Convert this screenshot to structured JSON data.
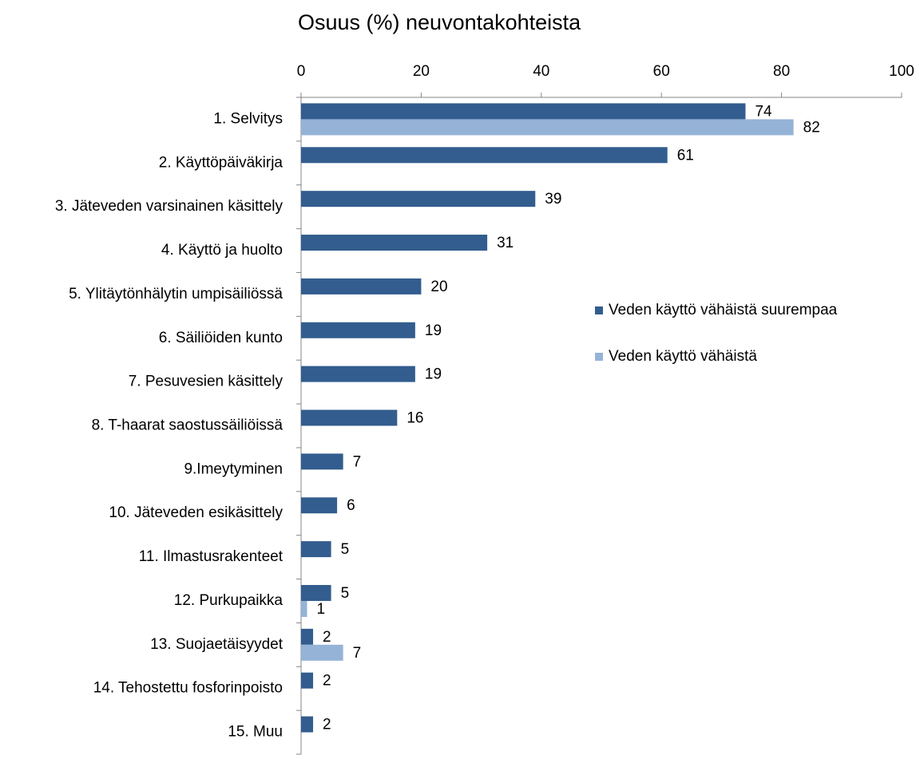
{
  "chart_data": {
    "type": "bar",
    "orientation": "horizontal",
    "title": "Osuus (%) neuvontakohteista",
    "categories": [
      "1. Selvitys",
      "2. Käyttöpäiväkirja",
      "3. Jäteveden varsinainen käsittely",
      "4. Käyttö ja huolto",
      "5. Ylitäytönhälytin umpisäiliössä",
      "6. Säiliöiden kunto",
      "7. Pesuvesien käsittely",
      "8. T-haarat saostussäiliöissä",
      "9.Imeytyminen",
      "10. Jäteveden esikäsittely",
      "11. Ilmastusrakenteet",
      "12. Purkupaikka",
      "13. Suojaetäisyydet",
      "14. Tehostettu fosforinpoisto",
      "15. Muu"
    ],
    "series": [
      {
        "name": "Veden käyttö vähäistä suurempaa",
        "color": "#325d8e",
        "values": [
          74,
          61,
          39,
          31,
          20,
          19,
          19,
          16,
          7,
          6,
          5,
          5,
          2,
          2,
          2
        ]
      },
      {
        "name": "Veden käyttö vähäistä",
        "color": "#95b3d7",
        "values": [
          82,
          null,
          null,
          null,
          null,
          null,
          null,
          null,
          null,
          null,
          null,
          1,
          7,
          null,
          null
        ]
      }
    ],
    "xlim": [
      0,
      100
    ],
    "xticks": [
      0,
      20,
      40,
      60,
      80,
      100
    ],
    "legend": "right"
  }
}
